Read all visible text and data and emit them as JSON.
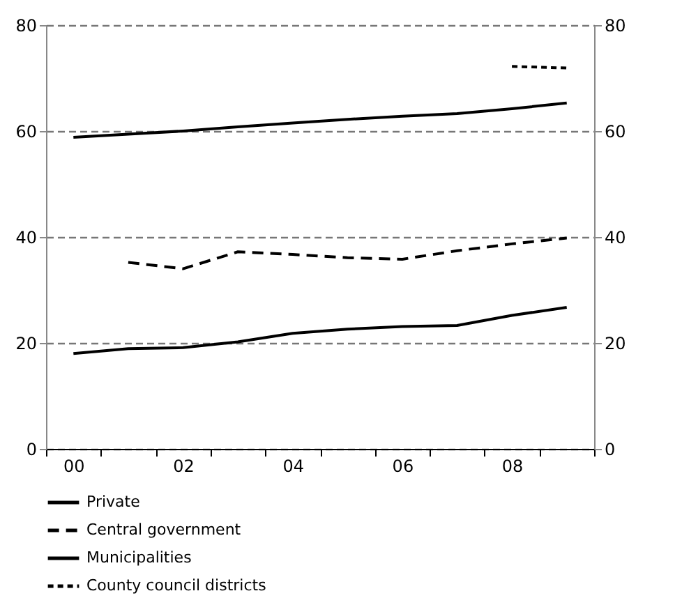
{
  "chart_data": {
    "type": "line",
    "categories": [
      "00",
      null,
      "02",
      null,
      "04",
      null,
      "06",
      null,
      "08",
      null
    ],
    "series": [
      {
        "name": "Private",
        "color": "#000000",
        "line_style": "solid",
        "values": [
          18.0,
          18.9,
          19.1,
          20.2,
          21.8,
          22.6,
          23.1,
          23.3,
          25.2,
          26.7
        ]
      },
      {
        "name": "Central government",
        "color": "#000000",
        "line_style": "dashed",
        "values": [
          null,
          35.2,
          34.0,
          37.2,
          36.7,
          36.1,
          35.8,
          37.4,
          38.7,
          39.8
        ]
      },
      {
        "name": "Municipalities",
        "color": "#000000",
        "line_style": "solid",
        "values": [
          58.8,
          59.4,
          60.0,
          60.8,
          61.5,
          62.2,
          62.8,
          63.3,
          64.2,
          65.3
        ]
      },
      {
        "name": "County council districts",
        "color": "#000000",
        "line_style": "dotted",
        "values": [
          null,
          null,
          null,
          null,
          null,
          null,
          null,
          null,
          72.2,
          71.9
        ]
      }
    ],
    "ylim": [
      0,
      80
    ],
    "yticks": [
      0,
      20,
      40,
      60,
      80
    ],
    "y2lim": [
      0,
      80
    ],
    "y2ticks": [
      0,
      20,
      40,
      60,
      80
    ],
    "grid": "y",
    "legend": "bottom left",
    "marker": "none"
  }
}
